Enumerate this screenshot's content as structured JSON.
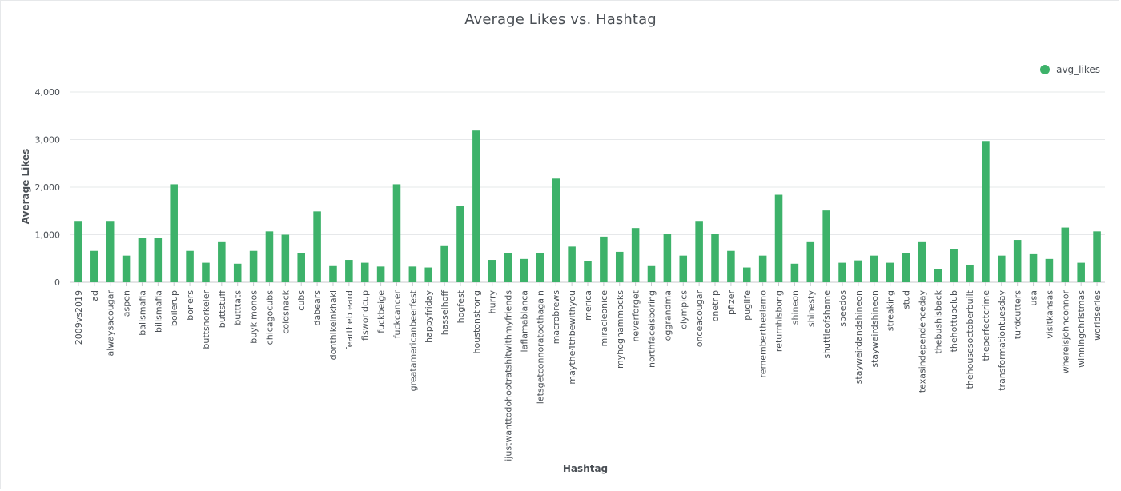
{
  "chart_data": {
    "type": "bar",
    "title": "Average Likes vs. Hashtag",
    "xlabel": "Hashtag",
    "ylabel": "Average Likes",
    "ylim": [
      0,
      4000
    ],
    "yticks": [
      0,
      1000,
      2000,
      3000,
      4000
    ],
    "ytick_labels": [
      "0",
      "1,000",
      "2,000",
      "3,000",
      "4,000"
    ],
    "grid": true,
    "legend_position": "top-right",
    "bar_color": "#3db26a",
    "categories": [
      "2009vs2019",
      "ad",
      "alwaysacougar",
      "aspen",
      "ballsmafia",
      "billsmafia",
      "boilerup",
      "boners",
      "buttsnorkeler",
      "buttstuff",
      "butttats",
      "buykimonos",
      "chicagocubs",
      "coldsnack",
      "cubs",
      "dabears",
      "donthikeinkhaki",
      "feartheb eard",
      "fisworldcup",
      "fuckbeige",
      "fuckcancer",
      "greatamericanbeerfest",
      "happyfriday",
      "hasselhoff",
      "hogfest",
      "houstonstrong",
      "hurry",
      "ijustwanttodohootratshitwithmyfriends",
      "laflamablanca",
      "letsgetconnoratoothagain",
      "macrobrews",
      "maythe4thbewithyou",
      "merica",
      "miracleonice",
      "myhoghammocks",
      "neverforget",
      "northfaceisboring",
      "oggrandma",
      "olympics",
      "onceacougar",
      "onetrip",
      "pfizer",
      "puglife",
      "rememberthealamo",
      "returnhisbong",
      "shineon",
      "shinesty",
      "shuttleofshame",
      "speedos",
      "stayweirdandshineon",
      "stayweirdshineon",
      "streaking",
      "stud",
      "texasindependenceday",
      "thebushisback",
      "thehottubclub",
      "thehousesoctoberbuilt",
      "theperfectcrime",
      "transformationtuesday",
      "turdcutters",
      "usa",
      "visitkansas",
      "whereisjohnconnor",
      "winningchristmas",
      "worldseries"
    ],
    "series": [
      {
        "name": "avg_likes",
        "values": [
          1290,
          660,
          1290,
          560,
          930,
          930,
          2060,
          660,
          410,
          860,
          390,
          660,
          1070,
          1000,
          620,
          1490,
          340,
          470,
          410,
          330,
          2060,
          330,
          310,
          760,
          1610,
          3190,
          470,
          610,
          490,
          620,
          2180,
          750,
          440,
          960,
          640,
          1140,
          340,
          1010,
          560,
          1290,
          1010,
          660,
          310,
          560,
          1840,
          390,
          860,
          1510,
          410,
          460,
          560,
          410,
          610,
          860,
          270,
          690,
          370,
          2970,
          560,
          890,
          590,
          490,
          1150,
          410,
          1070
        ]
      }
    ]
  }
}
